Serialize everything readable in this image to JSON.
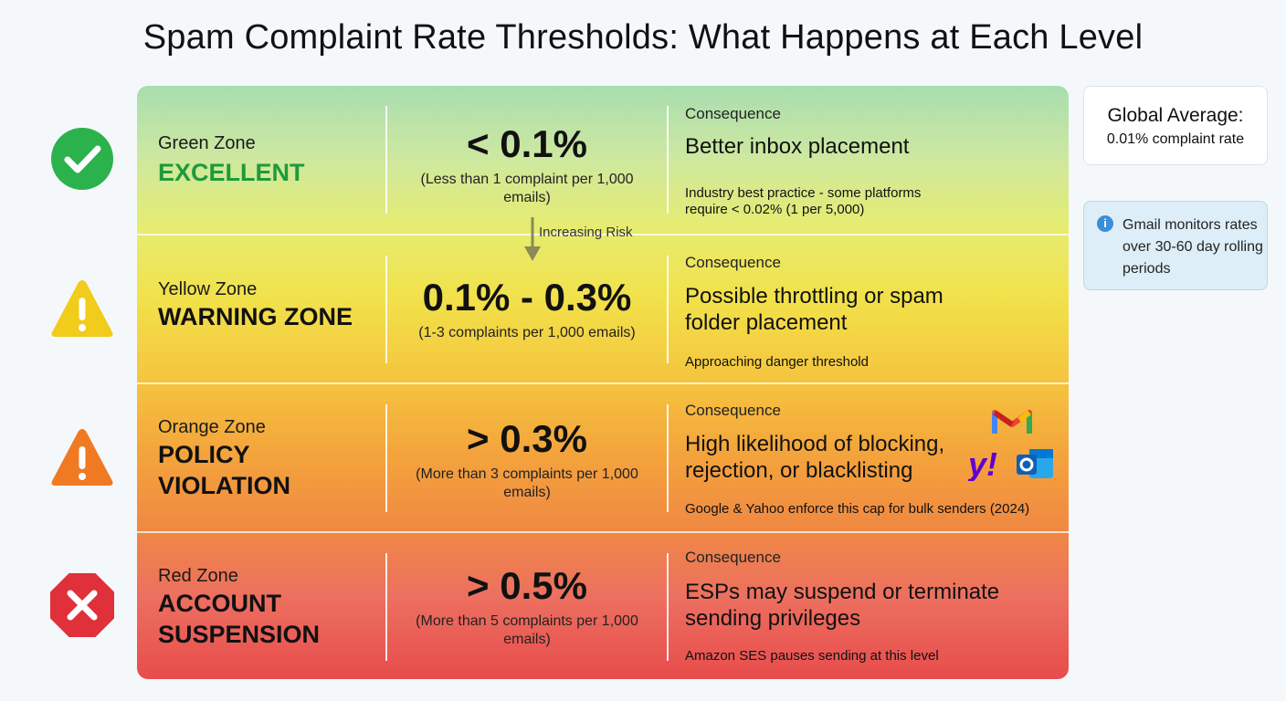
{
  "title": "Spam Complaint Rate Thresholds: What Happens at Each Level",
  "zones": [
    {
      "name": "Green Zone",
      "status": "EXCELLENT",
      "status_color": "#1e9a3c",
      "icon": "check-circle-icon",
      "icon_color": "#2bb24c",
      "range": "< 0.1%",
      "range_sub": "(Less than 1 complaint per 1,000 emails)",
      "consequence_label": "Consequence",
      "consequence": "Better inbox placement",
      "note": "Industry best practice - some platforms require < 0.02% (1 per 5,000)"
    },
    {
      "name": "Yellow Zone",
      "status": "WARNING ZONE",
      "status_color": "#111111",
      "icon": "warning-triangle-icon",
      "icon_color": "#f2cc1a",
      "range": "0.1% - 0.3%",
      "range_sub": "(1-3 complaints per 1,000 emails)",
      "consequence_label": "Consequence",
      "consequence": "Possible throttling or spam folder placement",
      "note": "Approaching danger threshold"
    },
    {
      "name": "Orange Zone",
      "status": "POLICY VIOLATION",
      "status_color": "#111111",
      "icon": "alert-triangle-icon",
      "icon_color": "#f07a22",
      "range": "> 0.3%",
      "range_sub": "(More than 3 complaints per 1,000 emails)",
      "consequence_label": "Consequence",
      "consequence": "High likelihood of blocking, rejection, or blacklisting",
      "note": "Google & Yahoo enforce this cap for bulk senders (2024)"
    },
    {
      "name": "Red Zone",
      "status": "ACCOUNT SUSPENSION",
      "status_color": "#111111",
      "icon": "stop-octagon-icon",
      "icon_color": "#e0303a",
      "range": "> 0.5%",
      "range_sub": "(More than 5 complaints per 1,000 emails)",
      "consequence_label": "Consequence",
      "consequence": "ESPs may suspend or terminate sending privileges",
      "note": "Amazon SES pauses sending at this level"
    }
  ],
  "risk_label": "Increasing Risk",
  "global": {
    "title": "Global Average:",
    "value": "0.01% complaint rate"
  },
  "info": {
    "icon": "info-icon",
    "text": "Gmail monitors rates over 30-60 day rolling periods"
  },
  "brands": [
    "gmail-logo",
    "yahoo-logo",
    "outlook-logo"
  ]
}
